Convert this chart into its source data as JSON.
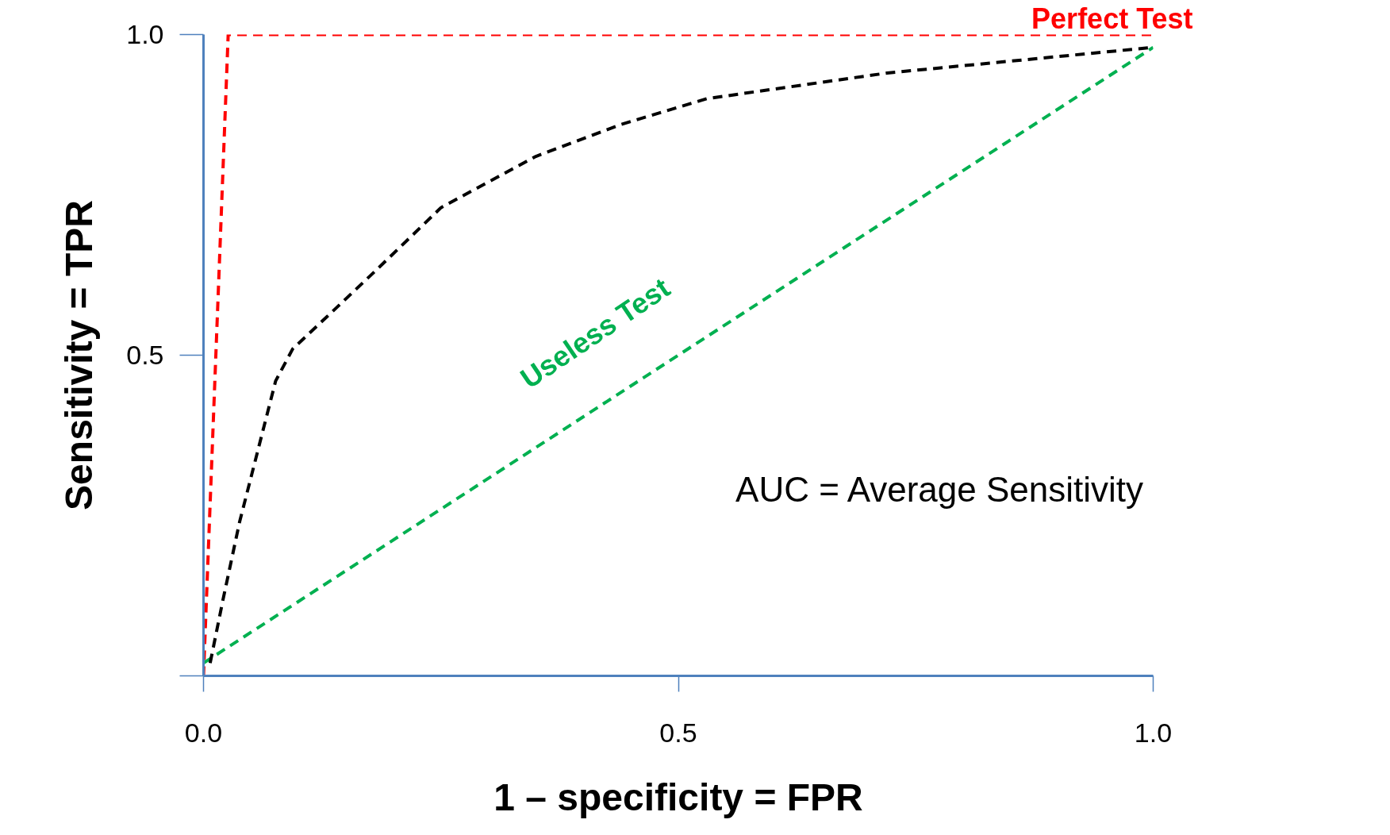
{
  "chart_data": {
    "type": "line",
    "xlabel": "1 – specificity = FPR",
    "ylabel": "Sensitivity = TPR",
    "xlim": [
      0,
      1
    ],
    "ylim": [
      0,
      1
    ],
    "xticks": [
      {
        "value": 0,
        "label": "0.0"
      },
      0.5,
      {
        "value": 1,
        "label": "1.0"
      }
    ],
    "yticks": [
      {
        "value": 0,
        "label": null
      },
      0.5,
      {
        "value": 1,
        "label": "1.0"
      }
    ],
    "grid": false,
    "legend": false,
    "line_style": "dashed",
    "marker": "none",
    "series": [
      {
        "name": "Perfect Test",
        "color": "#ff0000",
        "x": [
          0,
          0.026,
          1
        ],
        "values": [
          0,
          1,
          1
        ]
      },
      {
        "name": "Useless Test",
        "color": "#00b050",
        "x": [
          0,
          1
        ],
        "values": [
          0.02,
          0.98
        ]
      },
      {
        "color": "#000000",
        "x": [
          0.007,
          0.02,
          0.038,
          0.057,
          0.076,
          0.094,
          0.13,
          0.18,
          0.25,
          0.35,
          0.44,
          0.53,
          0.72,
          1.0
        ],
        "values": [
          0.02,
          0.115,
          0.24,
          0.35,
          0.46,
          0.51,
          0.56,
          0.63,
          0.73,
          0.81,
          0.86,
          0.9,
          0.94,
          0.98
        ]
      }
    ],
    "annotations": [
      "AUC = Average Sensitivity"
    ]
  }
}
